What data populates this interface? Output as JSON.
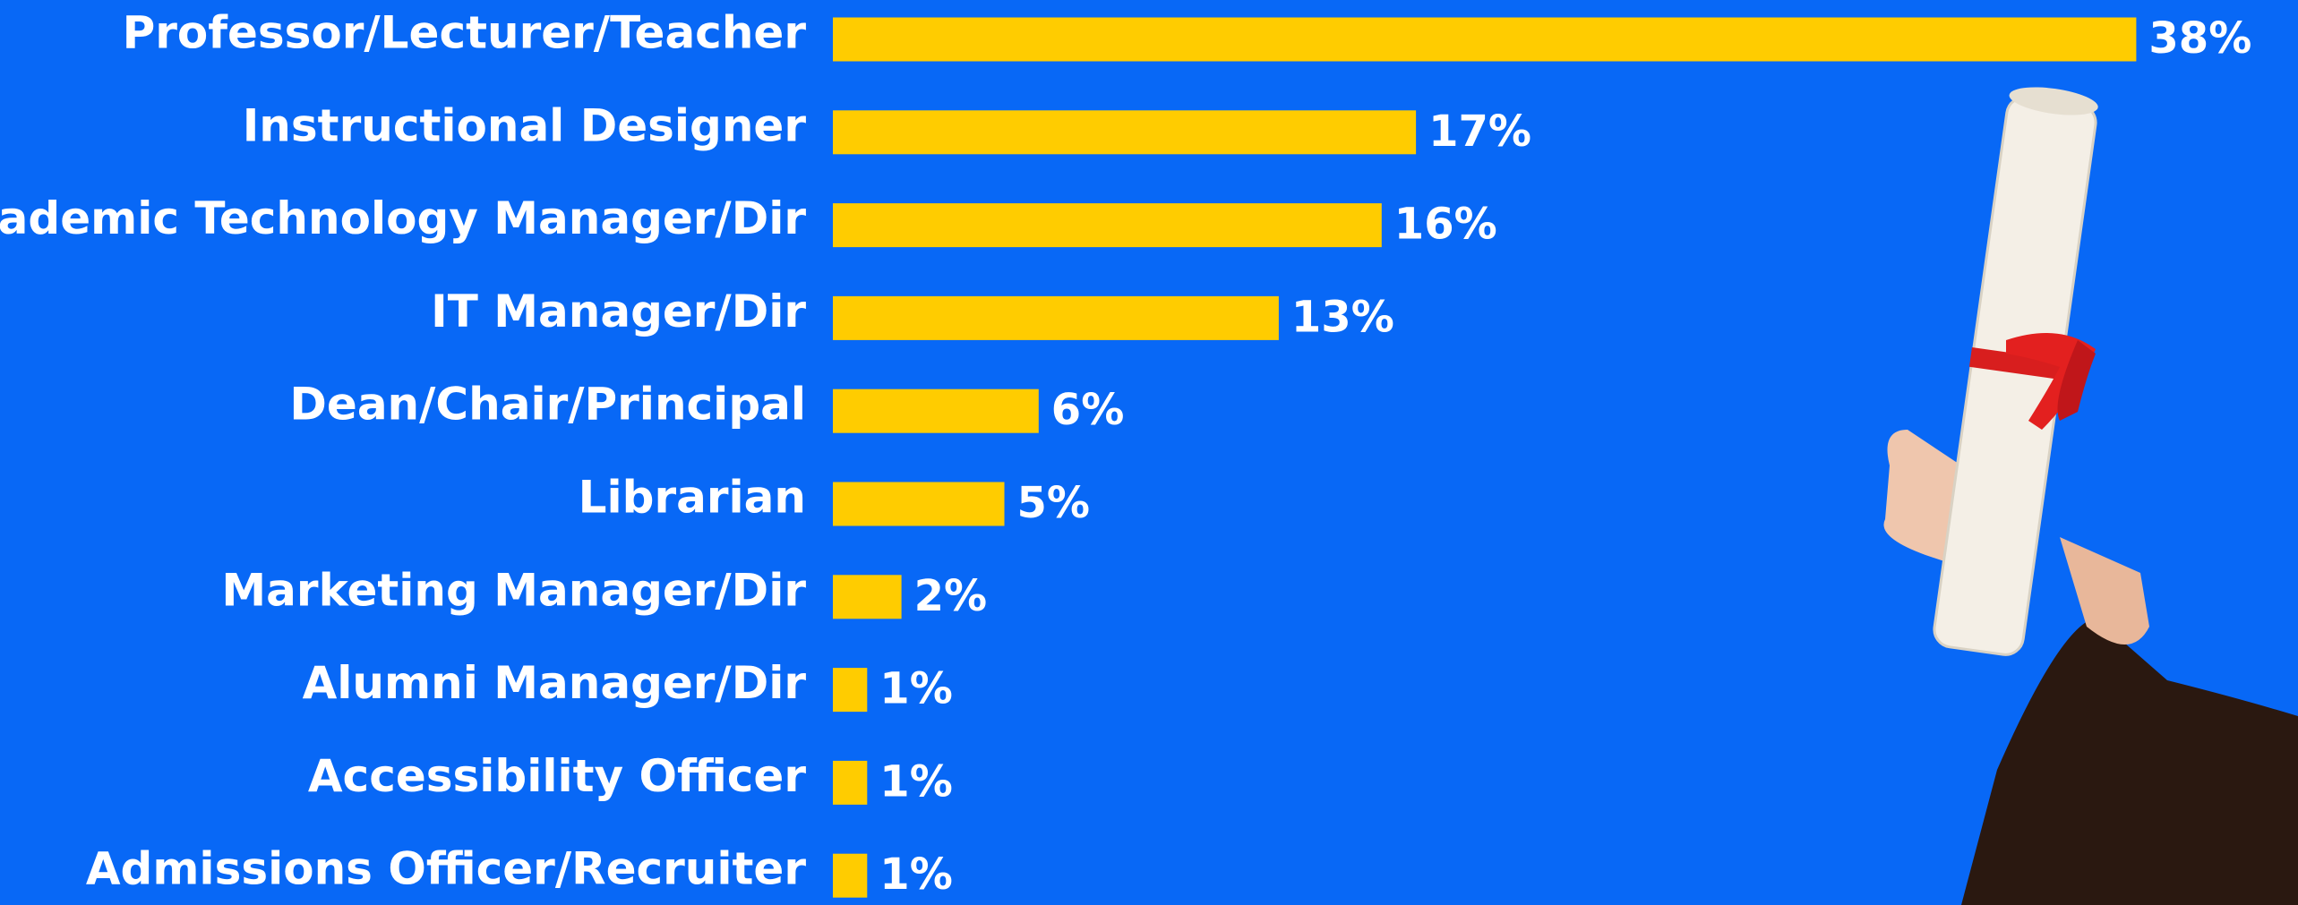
{
  "chart_data": {
    "type": "bar",
    "orientation": "horizontal",
    "categories": [
      "Professor/Lecturer/Teacher",
      "Instructional Designer",
      "Academic Technology Manager/Dir",
      "IT Manager/Dir",
      "Dean/Chair/Principal",
      "Librarian",
      "Marketing Manager/Dir",
      "Alumni Manager/Dir",
      "Accessibility Officer",
      "Admissions Officer/Recruiter"
    ],
    "values": [
      38,
      17,
      16,
      13,
      6,
      5,
      2,
      1,
      1,
      1
    ],
    "value_labels": [
      "38%",
      "17%",
      "16%",
      "13%",
      "6%",
      "5%",
      "2%",
      "1%",
      "1%",
      "1%"
    ],
    "color": "#ffcc00"
  }
}
